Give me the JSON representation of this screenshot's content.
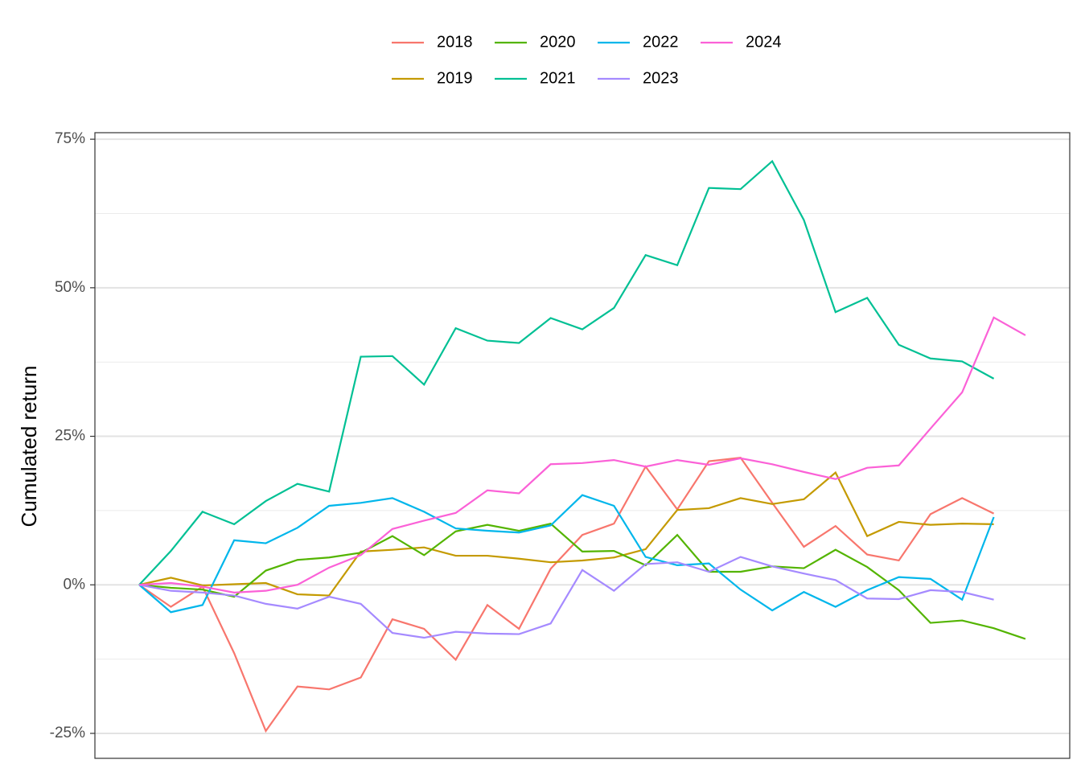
{
  "chart_data": {
    "type": "line",
    "ylabel": "Cumulated return",
    "categories": [
      null,
      null,
      null,
      null,
      null,
      null,
      null,
      null,
      null,
      null,
      null,
      null,
      null,
      null,
      null,
      null,
      null,
      null,
      null,
      null,
      null,
      null,
      null,
      null,
      null,
      null,
      null,
      null,
      null
    ],
    "series": [
      {
        "name": "2018",
        "color": "#F8766D",
        "values": [
          0,
          -3.7,
          -0.3,
          -11.5,
          -24.6,
          -17.1,
          -17.6,
          -15.6,
          -5.8,
          -7.4,
          -12.6,
          -3.4,
          -7.4,
          2.7,
          8.4,
          10.3,
          19.9,
          12.7,
          20.8,
          21.4,
          13.8,
          6.4,
          9.9,
          5.1,
          4.1,
          11.9,
          14.6,
          12.0,
          null
        ]
      },
      {
        "name": "2019",
        "color": "#C49A00",
        "values": [
          0,
          1.2,
          -0.1,
          0.1,
          0.3,
          -1.6,
          -1.8,
          5.6,
          5.9,
          6.3,
          4.9,
          4.9,
          4.4,
          3.8,
          4.1,
          4.6,
          6.0,
          12.6,
          12.9,
          14.6,
          13.6,
          14.4,
          18.9,
          8.2,
          10.6,
          10.1,
          10.3,
          10.2,
          null
        ]
      },
      {
        "name": "2020",
        "color": "#53B400",
        "values": [
          0,
          -0.5,
          -0.8,
          -2.0,
          2.4,
          4.2,
          4.6,
          5.4,
          8.2,
          5.0,
          9.0,
          10.1,
          9.1,
          10.3,
          5.6,
          5.7,
          3.3,
          8.4,
          2.2,
          2.2,
          3.1,
          2.8,
          5.9,
          3.0,
          -0.9,
          -6.4,
          -6.0,
          -7.3,
          -9.1
        ]
      },
      {
        "name": "2021",
        "color": "#00C094",
        "values": [
          0,
          5.7,
          12.3,
          10.2,
          14.1,
          17.0,
          15.7,
          38.4,
          38.5,
          33.7,
          43.2,
          41.1,
          40.7,
          44.9,
          43.0,
          46.6,
          55.5,
          53.8,
          66.8,
          66.6,
          71.3,
          61.4,
          45.9,
          48.3,
          40.4,
          38.1,
          37.6,
          34.7,
          null
        ]
      },
      {
        "name": "2022",
        "color": "#00B6EB",
        "values": [
          0,
          -4.6,
          -3.4,
          7.5,
          7.0,
          9.6,
          13.3,
          13.8,
          14.6,
          12.3,
          9.5,
          9.1,
          8.8,
          10.0,
          15.1,
          13.3,
          4.7,
          3.3,
          3.6,
          -0.8,
          -4.3,
          -1.2,
          -3.7,
          -0.9,
          1.3,
          1.0,
          -2.5,
          11.4,
          null
        ]
      },
      {
        "name": "2023",
        "color": "#A58AFF",
        "values": [
          0,
          -1.0,
          -1.3,
          -1.8,
          -3.2,
          -4.0,
          -2.0,
          -3.2,
          -8.1,
          -8.9,
          -7.9,
          -8.2,
          -8.3,
          -6.5,
          2.5,
          -1.0,
          3.5,
          3.8,
          2.2,
          4.7,
          3.1,
          1.9,
          0.8,
          -2.3,
          -2.4,
          -0.9,
          -1.2,
          -2.5,
          null
        ]
      },
      {
        "name": "2024",
        "color": "#FB61D7",
        "values": [
          0,
          0.3,
          -0.3,
          -1.3,
          -1.0,
          0.0,
          2.9,
          5.0,
          9.4,
          10.8,
          12.1,
          15.9,
          15.4,
          20.3,
          20.5,
          21.0,
          19.9,
          21.0,
          20.2,
          21.3,
          20.3,
          19.0,
          17.8,
          19.7,
          20.1,
          26.3,
          32.4,
          45.0,
          42.0
        ]
      }
    ],
    "ylim": [
      -29.2,
      76.1
    ],
    "yticks": [
      {
        "value": -25,
        "label": "-25%"
      },
      {
        "value": 0,
        "label": "0%"
      },
      {
        "value": 25,
        "label": "25%"
      },
      {
        "value": 50,
        "label": "50%"
      },
      {
        "value": 75,
        "label": "75%"
      }
    ],
    "minor_yticks": [
      -12.5,
      12.5,
      37.5,
      62.5
    ],
    "grid": true,
    "legend": "top"
  }
}
